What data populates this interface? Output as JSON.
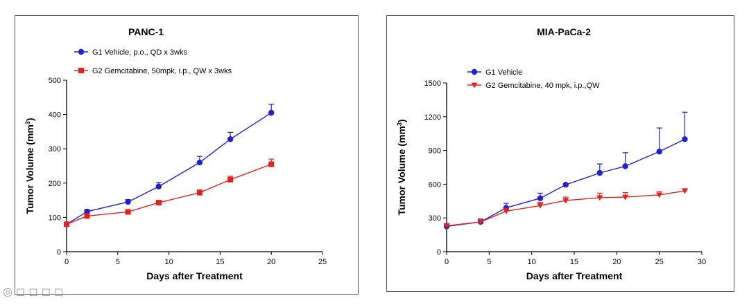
{
  "chart_data": [
    {
      "type": "line",
      "title": "PANC-1",
      "xlabel": "Days after Treatment",
      "ylabel": "Tumor Volume (mm",
      "ylabel_sup": "3",
      "ylabel_close": ")",
      "xlim": [
        0,
        25
      ],
      "ylim": [
        0,
        500
      ],
      "xticks": [
        0,
        5,
        10,
        15,
        20,
        25
      ],
      "yticks": [
        0,
        100,
        200,
        300,
        400,
        500
      ],
      "grid": false,
      "legend": "top-left",
      "series": [
        {
          "name": "G1 Vehicle, p.o., QD x 3wks",
          "color": "#1f1fd6",
          "marker": "circle",
          "x": [
            0,
            2,
            6,
            9,
            13,
            16,
            20
          ],
          "y": [
            80,
            117,
            145,
            190,
            260,
            328,
            405
          ],
          "err": [
            5,
            6,
            7,
            12,
            18,
            20,
            25
          ]
        },
        {
          "name": "G2 Gemcitabine, 50mpk, i.p., QW x 3wks",
          "color": "#e8201c",
          "marker": "square",
          "x": [
            0,
            2,
            6,
            9,
            13,
            16,
            20
          ],
          "y": [
            80,
            104,
            116,
            143,
            172,
            210,
            255
          ],
          "err": [
            4,
            5,
            6,
            6,
            8,
            10,
            15
          ]
        }
      ]
    },
    {
      "type": "line",
      "title": "MIA-PaCa-2",
      "xlabel": "Days after Treatment",
      "ylabel": "Tumor Volume (mm",
      "ylabel_sup": "3",
      "ylabel_close": ")",
      "xlim": [
        0,
        30
      ],
      "ylim": [
        0,
        1500
      ],
      "xticks": [
        0,
        5,
        10,
        15,
        20,
        25,
        30
      ],
      "yticks": [
        0,
        300,
        600,
        900,
        1200,
        1500
      ],
      "grid": false,
      "legend": "top-left",
      "series": [
        {
          "name": "G1 Vehicle",
          "color": "#1f1fd6",
          "marker": "circle",
          "x": [
            0,
            4,
            7,
            11,
            14,
            18,
            21,
            25,
            28
          ],
          "y": [
            225,
            265,
            390,
            475,
            595,
            700,
            760,
            890,
            1000
          ],
          "err": [
            20,
            25,
            40,
            45,
            10,
            80,
            120,
            210,
            240
          ]
        },
        {
          "name": "G2 Gemcitabine, 40 mpk, i.p.,QW",
          "color": "#e8201c",
          "marker": "triangle-down",
          "x": [
            0,
            4,
            7,
            11,
            14,
            18,
            21,
            25,
            28
          ],
          "y": [
            230,
            265,
            360,
            410,
            455,
            480,
            485,
            505,
            540
          ],
          "err": [
            20,
            20,
            25,
            30,
            30,
            40,
            40,
            30,
            20
          ]
        }
      ]
    }
  ]
}
